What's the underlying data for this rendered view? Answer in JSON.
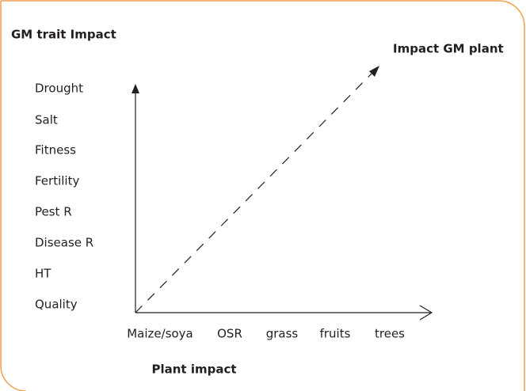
{
  "title": "GM trait Impact",
  "diagonal_label": "Impact GM plant",
  "traits": [
    "Drought",
    "Salt",
    "Fitness",
    "Fertility",
    "Pest R",
    "Disease R",
    "HT",
    "Quality"
  ],
  "plants": [
    "Maize/soya",
    "OSR",
    "grass",
    "fruits",
    "trees"
  ],
  "x_axis_label": "Plant impact"
}
